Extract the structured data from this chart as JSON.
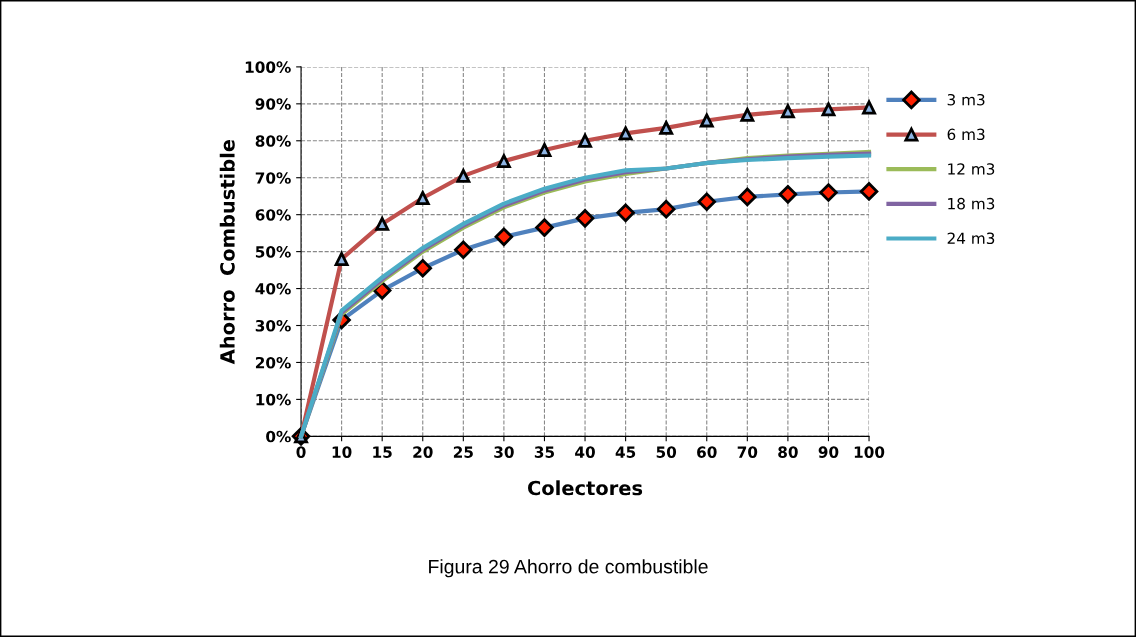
{
  "chart_data": {
    "type": "line",
    "xlabel": "Colectores",
    "ylabel": "Ahorro  Combustible",
    "categories": [
      "0",
      "10",
      "15",
      "20",
      "25",
      "30",
      "35",
      "40",
      "45",
      "50",
      "60",
      "70",
      "80",
      "90",
      "100"
    ],
    "series": [
      {
        "name": "3 m3",
        "color": "#4f81bd",
        "marker": "diamond",
        "values": [
          0,
          31.5,
          39.5,
          45.5,
          50.5,
          54,
          56.5,
          59,
          60.5,
          61.5,
          63.5,
          64.8,
          65.5,
          66,
          66.3
        ]
      },
      {
        "name": "6 m3",
        "color": "#c0504d",
        "marker": "triangle",
        "values": [
          0,
          48,
          57.5,
          64.5,
          70.5,
          74.5,
          77.5,
          80,
          82,
          83.5,
          85.5,
          87,
          88,
          88.5,
          89
        ]
      },
      {
        "name": "12 m3",
        "color": "#9bbb59",
        "values": [
          0,
          33,
          42,
          50,
          56.5,
          62,
          66,
          69,
          71,
          72.5,
          74,
          75.3,
          76,
          76.5,
          77
        ]
      },
      {
        "name": "18 m3",
        "color": "#8064a2",
        "values": [
          0,
          33.5,
          42.5,
          50.5,
          57,
          62.5,
          66.5,
          69.5,
          71.5,
          72.5,
          74,
          75,
          75.7,
          76.2,
          76.5
        ]
      },
      {
        "name": "24 m3",
        "color": "#4bacc6",
        "values": [
          0,
          34,
          43,
          51,
          57.5,
          63,
          67,
          70,
          72,
          72.5,
          74,
          74.8,
          75.3,
          75.7,
          76
        ]
      }
    ],
    "ylim": [
      0,
      100
    ],
    "yticks": [
      {
        "value": 0,
        "label": "0%"
      },
      {
        "value": 10,
        "label": "10%"
      },
      {
        "value": 20,
        "label": "20%"
      },
      {
        "value": 30,
        "label": "30%"
      },
      {
        "value": 40,
        "label": "40%"
      },
      {
        "value": 50,
        "label": "50%"
      },
      {
        "value": 60,
        "label": "60%"
      },
      {
        "value": 70,
        "label": "70%"
      },
      {
        "value": 80,
        "label": "80%"
      },
      {
        "value": 90,
        "label": "90%"
      },
      {
        "value": 100,
        "label": "100%"
      }
    ],
    "grid": true,
    "legend": "right",
    "line_style": "solid",
    "annotations": [
      "Figura 29 Ahorro de combustible"
    ]
  }
}
